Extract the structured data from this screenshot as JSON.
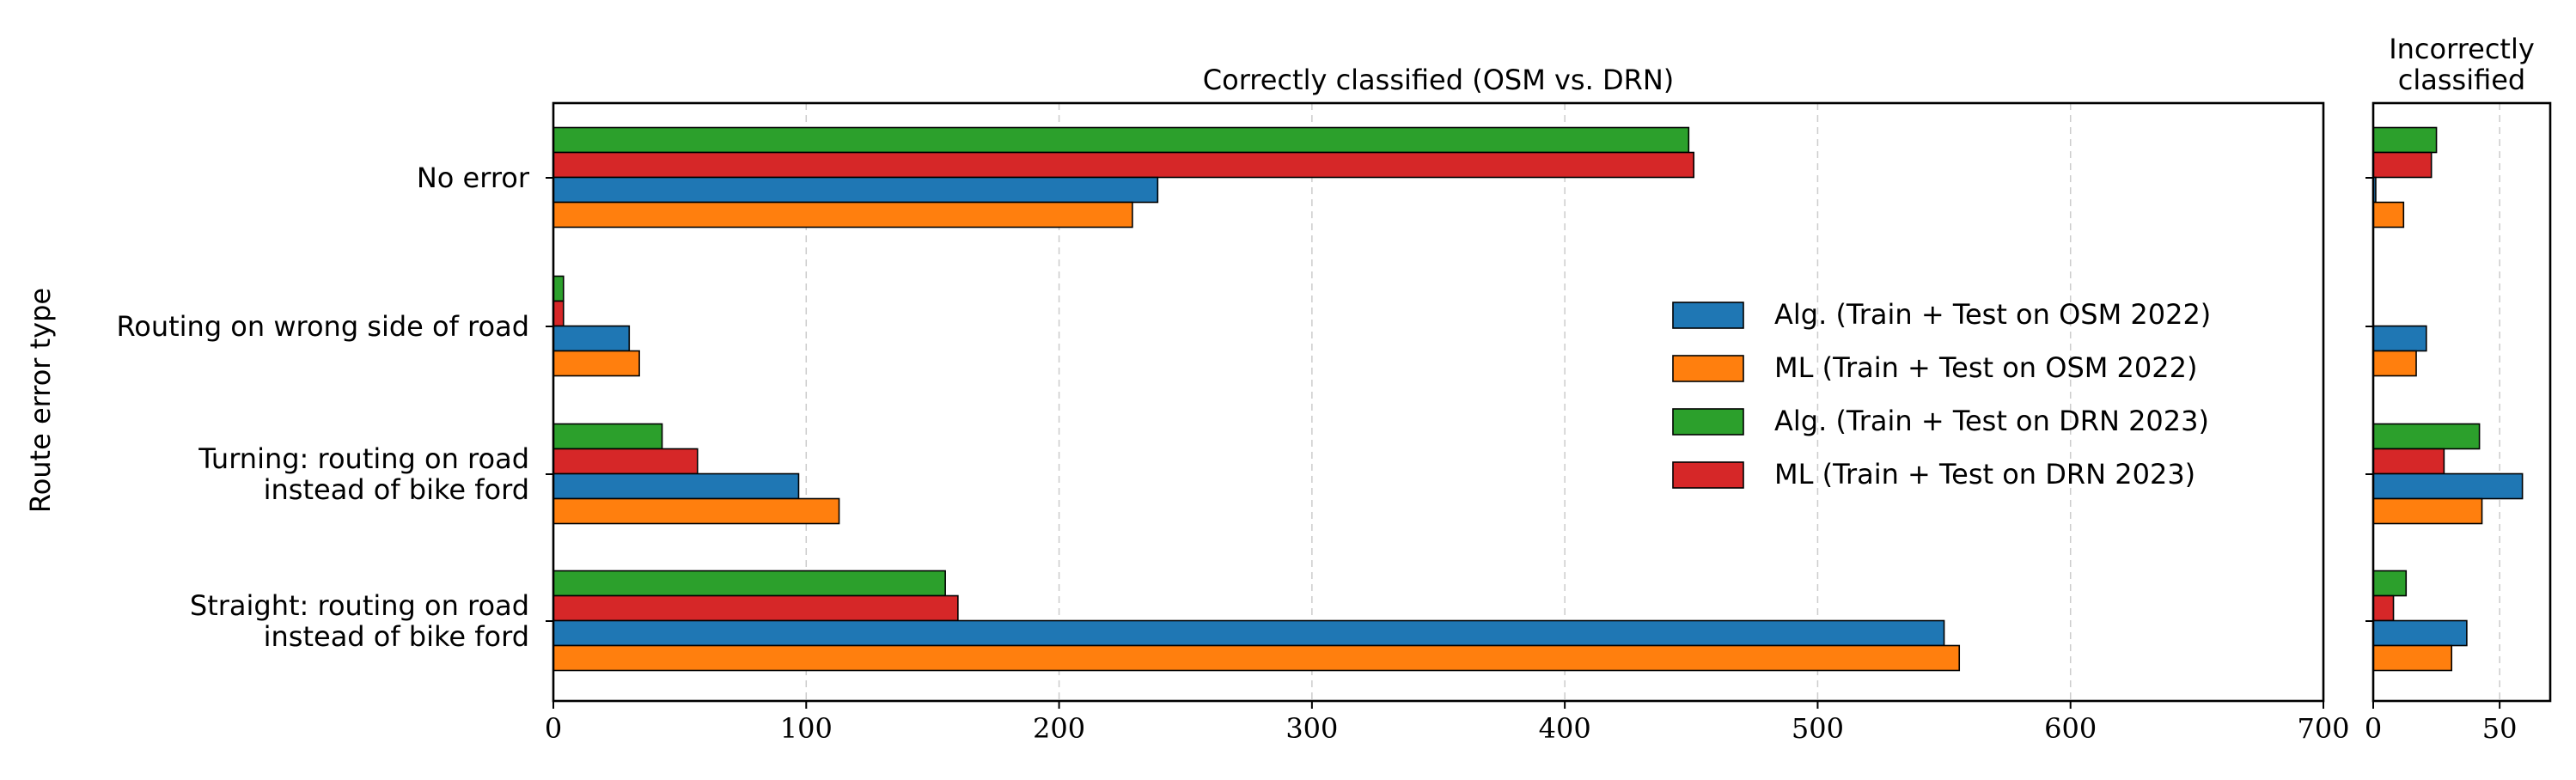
{
  "y_axis_label": "Route error type",
  "chart_data": [
    {
      "type": "bar",
      "orientation": "horizontal",
      "title": "Correctly classified (OSM vs. DRN)",
      "xlabel": "",
      "ylabel": "Route error type",
      "xlim": [
        0,
        700
      ],
      "xticks": [
        0,
        100,
        200,
        300,
        400,
        500,
        600,
        700
      ],
      "grid": "x dashed",
      "legend_position": "center-right",
      "categories": [
        [
          "No error"
        ],
        [
          "Routing on wrong side of road"
        ],
        [
          "Turning: routing on road",
          "instead of bike ford"
        ],
        [
          "Straight: routing on road",
          "instead of bike ford"
        ]
      ],
      "series": [
        {
          "name": "Alg. (Train + Test on OSM 2022)",
          "color": "#1f77b4",
          "values": [
            239,
            30,
            97,
            550
          ]
        },
        {
          "name": "ML (Train + Test on OSM 2022)",
          "color": "#ff7f0e",
          "values": [
            229,
            34,
            113,
            556
          ]
        },
        {
          "name": "Alg. (Train + Test on DRN 2023)",
          "color": "#2ca02c",
          "values": [
            449,
            4,
            43,
            155
          ]
        },
        {
          "name": "ML (Train + Test on DRN 2023)",
          "color": "#d62728",
          "values": [
            451,
            4,
            57,
            160
          ]
        }
      ]
    },
    {
      "type": "bar",
      "orientation": "horizontal",
      "title": [
        "Incorrectly",
        "classified"
      ],
      "xlabel": "",
      "xlim": [
        0,
        70
      ],
      "xticks": [
        0,
        50
      ],
      "grid": "x dashed",
      "categories": [
        [
          "No error"
        ],
        [
          "Routing on wrong side of road"
        ],
        [
          "Turning: routing on road",
          "instead of bike ford"
        ],
        [
          "Straight: routing on road",
          "instead of bike ford"
        ]
      ],
      "series": [
        {
          "name": "Alg. (Train + Test on OSM 2022)",
          "color": "#1f77b4",
          "values": [
            1,
            21,
            59,
            37
          ]
        },
        {
          "name": "ML (Train + Test on OSM 2022)",
          "color": "#ff7f0e",
          "values": [
            12,
            17,
            43,
            31
          ]
        },
        {
          "name": "Alg. (Train + Test on DRN 2023)",
          "color": "#2ca02c",
          "values": [
            25,
            0,
            42,
            13
          ]
        },
        {
          "name": "ML (Train + Test on DRN 2023)",
          "color": "#d62728",
          "values": [
            23,
            0,
            28,
            8
          ]
        }
      ]
    }
  ]
}
